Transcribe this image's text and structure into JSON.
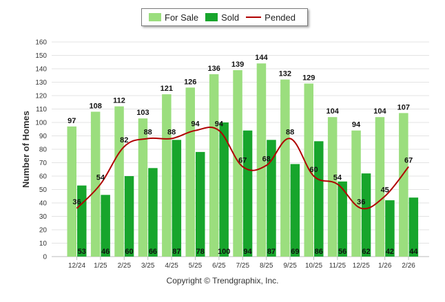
{
  "legend": {
    "for_sale": "For Sale",
    "sold": "Sold",
    "pended": "Pended"
  },
  "copyright": "Copyright © Trendgraphix, Inc.",
  "colors": {
    "for_sale": "#9bde7e",
    "sold": "#17a52c",
    "pended": "#b00000",
    "grid": "#e3e3e3"
  },
  "chart_data": {
    "type": "bar",
    "title": "",
    "xlabel": "",
    "ylabel": "Number of Homes",
    "ylim": [
      0,
      160
    ],
    "yticks": [
      0,
      10,
      20,
      30,
      40,
      50,
      60,
      70,
      80,
      90,
      100,
      110,
      120,
      130,
      140,
      150,
      160
    ],
    "grid": true,
    "legend_position": "top-center",
    "categories": [
      "12/24",
      "1/25",
      "2/25",
      "3/25",
      "4/25",
      "5/25",
      "6/25",
      "7/25",
      "8/25",
      "9/25",
      "10/25",
      "11/25",
      "12/25",
      "1/26",
      "2/26"
    ],
    "series": [
      {
        "name": "For Sale",
        "type": "bar",
        "values": [
          97,
          108,
          112,
          103,
          121,
          126,
          136,
          139,
          144,
          132,
          129,
          104,
          94,
          104,
          107
        ]
      },
      {
        "name": "Sold",
        "type": "bar",
        "values": [
          53,
          46,
          60,
          66,
          87,
          78,
          100,
          94,
          87,
          69,
          86,
          56,
          62,
          42,
          44
        ]
      },
      {
        "name": "Pended",
        "type": "line",
        "values": [
          36,
          54,
          82,
          88,
          88,
          94,
          94,
          67,
          68,
          88,
          60,
          54,
          36,
          45,
          67
        ]
      }
    ]
  }
}
